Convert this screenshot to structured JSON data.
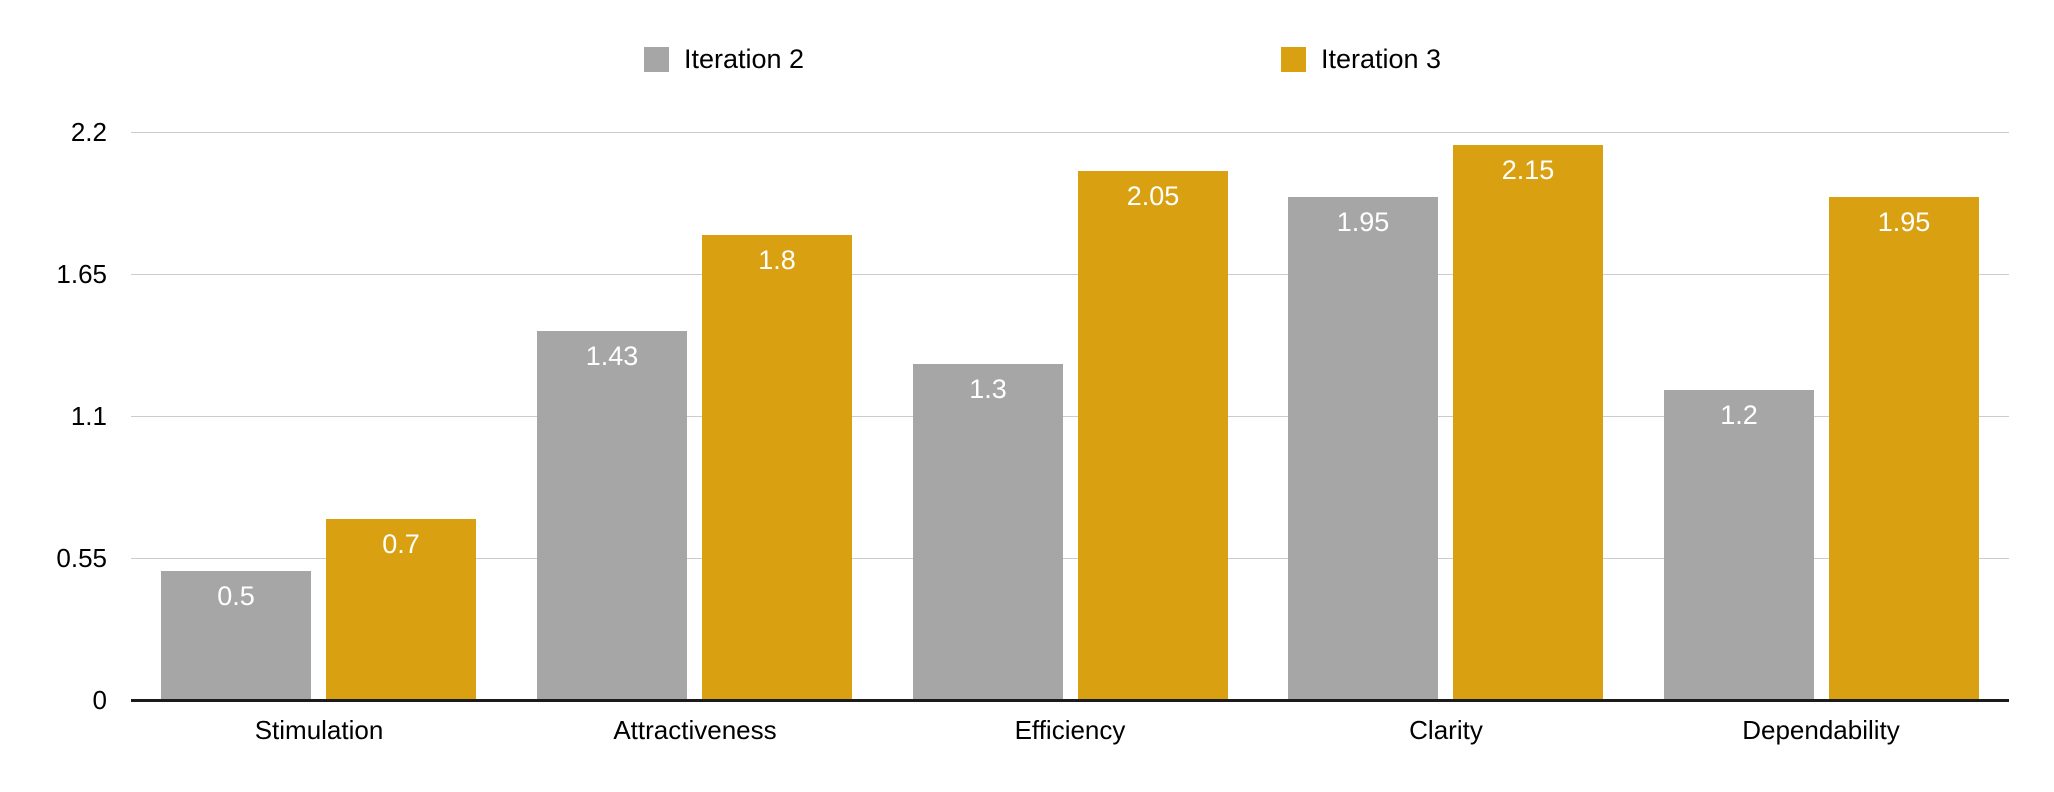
{
  "chart_data": {
    "type": "bar",
    "title": "",
    "xlabel": "",
    "ylabel": "",
    "categories": [
      "Stimulation",
      "Attractiveness",
      "Efficiency",
      "Clarity",
      "Dependability"
    ],
    "series": [
      {
        "name": "Iteration 2",
        "color": "#a6a6a6",
        "values": [
          0.5,
          1.43,
          1.3,
          1.95,
          1.2
        ],
        "labels": [
          "0.5",
          "1.43",
          "1.3",
          "1.95",
          "1.2"
        ]
      },
      {
        "name": "Iteration 3",
        "color": "#d9a112",
        "values": [
          0.7,
          1.8,
          2.05,
          2.15,
          1.95
        ],
        "labels": [
          "0.7",
          "1.8",
          "2.05",
          "2.15",
          "1.95"
        ]
      }
    ],
    "ylim": [
      0,
      2.2
    ],
    "y_ticks": [
      2.2,
      1.65,
      1.1,
      0.55,
      0
    ],
    "y_tick_labels": [
      "2.2",
      "1.65",
      "1.1",
      "0.55",
      "0"
    ],
    "grid": true,
    "legend_position": "top",
    "value_label_color": "#ffffff",
    "gridline_color": "#cccccc",
    "axis_line_color": "#1b1b1b",
    "text_color": "#000000"
  }
}
